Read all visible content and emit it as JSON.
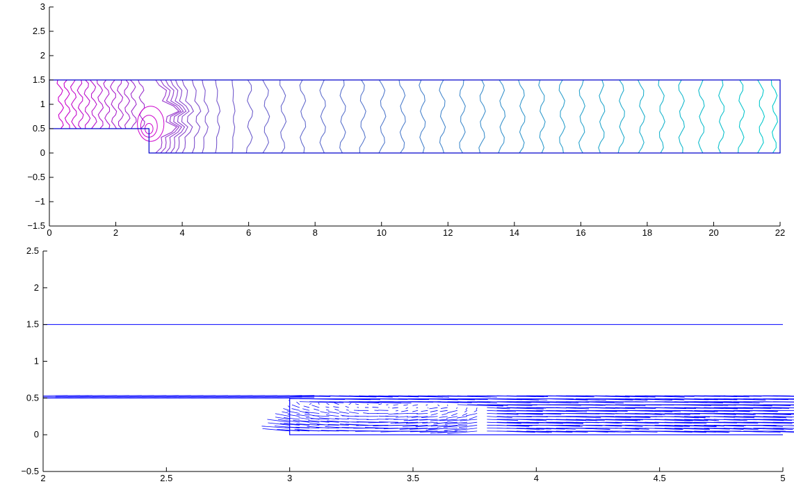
{
  "chart_data": [
    {
      "type": "contour",
      "title": "",
      "xlabel": "",
      "ylabel": "",
      "xlim": [
        0,
        22
      ],
      "ylim": [
        -1.5,
        3
      ],
      "x_ticks": [
        "0",
        "2",
        "4",
        "6",
        "8",
        "10",
        "12",
        "14",
        "16",
        "18",
        "20",
        "22"
      ],
      "y_ticks": [
        "−1.5",
        "−1",
        "−0.5",
        "0",
        "0.5",
        "1",
        "1.5",
        "2",
        "2.5",
        "3"
      ],
      "domain_outline": [
        [
          0,
          0.5
        ],
        [
          3,
          0.5
        ],
        [
          3,
          0
        ],
        [
          22,
          0
        ],
        [
          22,
          1.5
        ],
        [
          0,
          1.5
        ]
      ],
      "contour_x_levels": [
        0.3,
        0.5,
        0.7,
        0.9,
        1.1,
        1.3,
        1.5,
        1.7,
        1.9,
        2.1,
        2.3,
        2.5,
        2.75,
        3.2,
        3.35,
        3.5,
        3.65,
        3.8,
        4.0,
        4.3,
        4.6,
        5.0,
        5.5,
        6.0,
        6.5,
        7.0,
        7.6,
        8.2,
        8.8,
        9.4,
        10.0,
        10.6,
        11.2,
        11.8,
        12.4,
        13.0,
        13.6,
        14.2,
        14.8,
        15.4,
        16.0,
        16.6,
        17.2,
        17.8,
        18.4,
        19.0,
        19.6,
        20.2,
        20.8,
        21.4,
        21.8
      ],
      "colors": {
        "start": "#cc00cc",
        "end": "#00cccc"
      },
      "grid": false
    },
    {
      "type": "quiver",
      "title": "",
      "xlabel": "",
      "ylabel": "",
      "xlim": [
        2,
        5
      ],
      "ylim": [
        -0.5,
        2.5
      ],
      "x_ticks": [
        "2",
        "2.5",
        "3",
        "3.5",
        "4",
        "4.5",
        "5"
      ],
      "y_ticks": [
        "−0.5",
        "0",
        "0.5",
        "1",
        "1.5",
        "2",
        "2.5"
      ],
      "domain_outline": [
        [
          2,
          0.5
        ],
        [
          3,
          0.5
        ],
        [
          3,
          0
        ],
        [
          5,
          0
        ]
      ],
      "top_wall": 1.5,
      "color": "#0000ff",
      "grid": false
    }
  ]
}
